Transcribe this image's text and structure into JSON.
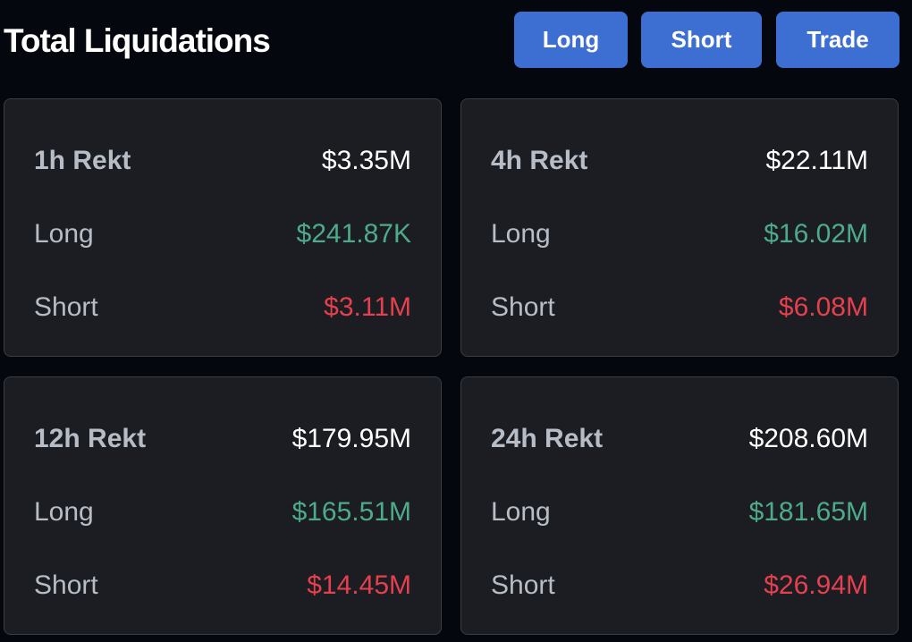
{
  "header": {
    "title": "Total Liquidations",
    "buttons": {
      "long": "Long",
      "short": "Short",
      "trade": "Trade"
    }
  },
  "cards": [
    {
      "period_label": "1h Rekt",
      "total": "$3.35M",
      "long_label": "Long",
      "long": "$241.87K",
      "short_label": "Short",
      "short": "$3.11M"
    },
    {
      "period_label": "4h Rekt",
      "total": "$22.11M",
      "long_label": "Long",
      "long": "$16.02M",
      "short_label": "Short",
      "short": "$6.08M"
    },
    {
      "period_label": "12h Rekt",
      "total": "$179.95M",
      "long_label": "Long",
      "long": "$165.51M",
      "short_label": "Short",
      "short": "$14.45M"
    },
    {
      "period_label": "24h Rekt",
      "total": "$208.60M",
      "long_label": "Long",
      "long": "$181.65M",
      "short_label": "Short",
      "short": "$26.94M"
    }
  ],
  "colors": {
    "background": "#05070f",
    "card_background": "#1b1d22",
    "card_border": "#3a3d44",
    "button": "#3d6fd3",
    "long_value": "#4eab8a",
    "short_value": "#e5404e",
    "label": "#b7bdc6",
    "total_value": "#ffffff"
  }
}
